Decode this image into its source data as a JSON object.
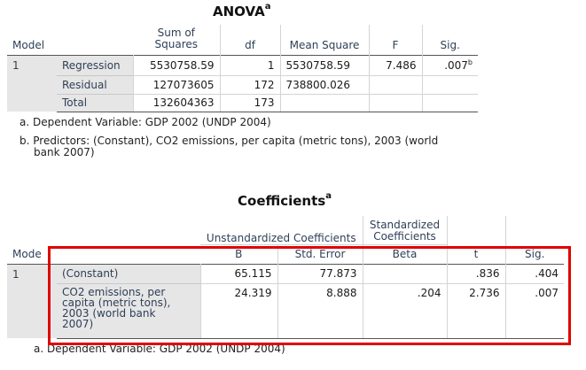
{
  "anova": {
    "title": "ANOVA",
    "title_sup": "a",
    "headers": {
      "model": "Model",
      "sum_sq_line1": "Sum of",
      "sum_sq_line2": "Squares",
      "df": "df",
      "mean_sq": "Mean Square",
      "f": "F",
      "sig": "Sig."
    },
    "model_number": "1",
    "rows": [
      {
        "label": "Regression",
        "sum_sq": "5530758.59",
        "df": "1",
        "mean_sq": "5530758.59",
        "f": "7.486",
        "sig": ".007",
        "sig_sup": "b"
      },
      {
        "label": "Residual",
        "sum_sq": "127073605",
        "df": "172",
        "mean_sq": "738800.026",
        "f": "",
        "sig": ""
      },
      {
        "label": "Total",
        "sum_sq": "132604363",
        "df": "173",
        "mean_sq": "",
        "f": "",
        "sig": ""
      }
    ],
    "notes": [
      "a. Dependent Variable: GDP 2002 (UNDP 2004)",
      "b. Predictors: (Constant), CO2 emissions, per capita (metric tons), 2003 (world",
      "bank 2007)"
    ]
  },
  "coefficients": {
    "title": "Coefficients",
    "title_sup": "a",
    "headers": {
      "model": "Mode",
      "unstd": "Unstandardized Coefficients",
      "std_line1": "Standardized",
      "std_line2": "Coefficients",
      "b": "B",
      "std_error": "Std. Error",
      "beta": "Beta",
      "t": "t",
      "sig": "Sig."
    },
    "model_number": "1",
    "rows": [
      {
        "label_lines": [
          "(Constant)"
        ],
        "b": "65.115",
        "std_error": "77.873",
        "beta": "",
        "t": ".836",
        "sig": ".404"
      },
      {
        "label_lines": [
          "CO2 emissions, per",
          "capita (metric tons),",
          "2003 (world bank",
          "2007)"
        ],
        "b": "24.319",
        "std_error": "8.888",
        "beta": ".204",
        "t": "2.736",
        "sig": ".007"
      }
    ],
    "note": "a. Dependent Variable: GDP 2002 (UNDP 2004)"
  },
  "highlight_color": "#e10000"
}
